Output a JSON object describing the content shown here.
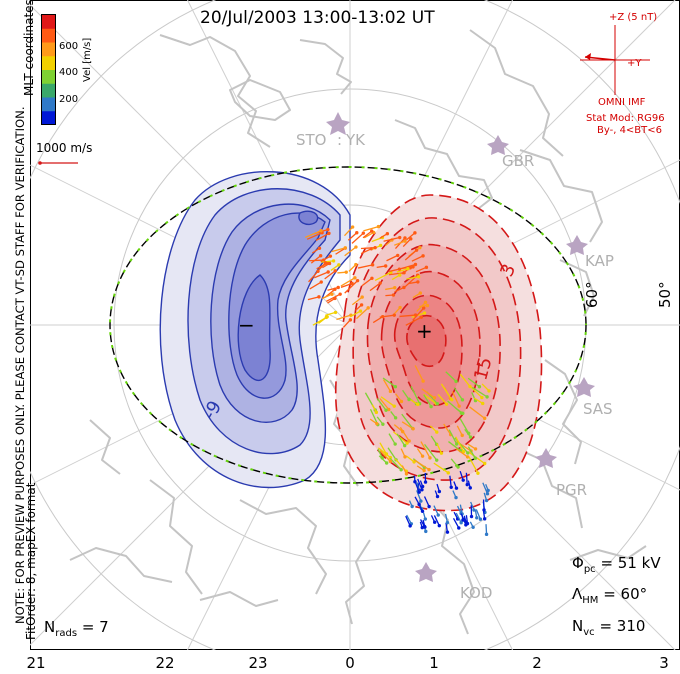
{
  "title": "20/Jul/2003 13:00-13:02 UT",
  "side_notes": {
    "coords": "MLT coordinates",
    "preview": "NOTE: FOR PREVIEW PURPOSES ONLY. PLEASE CONTACT VT-SD STAFF FOR VERIFICATION.",
    "fit": "FitOrder: 8, mapEX format"
  },
  "colorbar": {
    "label": "Vel [m/s]",
    "ticks": [
      "600",
      "400",
      "200"
    ],
    "colors": [
      "#0018d6",
      "#2f79c8",
      "#3aa86a",
      "#7fd233",
      "#f2d100",
      "#ff9a1a",
      "#ff5a14",
      "#e01818"
    ]
  },
  "reference_vector": "1000 m/s",
  "imf": {
    "z_label": "+Z (5 nT)",
    "y_label": "+Y",
    "source": "OMNI IMF",
    "model": "Stat Mod: RG96",
    "conditions": "By-, 4<BT<6"
  },
  "stations": [
    "STO",
    "YK",
    "GBR",
    "KAP",
    "SAS",
    "PGR",
    "KOD"
  ],
  "latitude_labels": [
    "60°",
    "50°"
  ],
  "contour_labels": [
    "-9",
    "3",
    "15"
  ],
  "cells": {
    "negative_marker": "−",
    "positive_marker": "+"
  },
  "stats": {
    "phi_pc": {
      "symbol": "Φ",
      "sub": "pc",
      "value": "= 51 kV"
    },
    "lambda_hm": {
      "symbol": "Λ",
      "sub": "HM",
      "value": "= 60°"
    },
    "n_vc": {
      "symbol": "N",
      "sub": "vc",
      "value": "= 310"
    },
    "n_rads": {
      "symbol": "N",
      "sub": "rads",
      "value": "= 7"
    }
  },
  "mlt_ticks": [
    "21",
    "22",
    "23",
    "0",
    "1",
    "2",
    "3"
  ],
  "colors": {
    "negative_cell": "#2b3bb0",
    "positive_cell": "#d41818",
    "landmass": "#c8c8c8",
    "grid": "#c9c9c9",
    "hmb_green": "#64d20a"
  }
}
